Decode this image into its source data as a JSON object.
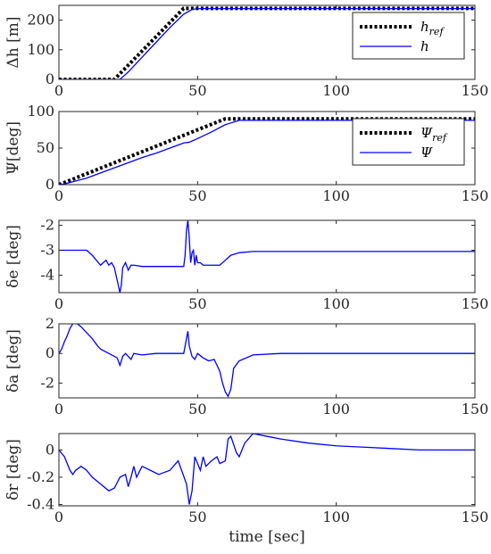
{
  "chart_data": [
    {
      "type": "line",
      "ylabel": "Δh [m]",
      "xlim": [
        0,
        150
      ],
      "ylim": [
        0,
        250
      ],
      "xticks": [
        0,
        50,
        100,
        150
      ],
      "yticks": [
        0,
        100,
        200
      ],
      "legend": "top-right",
      "series": [
        {
          "name": "h_ref",
          "color": "#000000",
          "dashed": true,
          "x": [
            0,
            20,
            45,
            150
          ],
          "y": [
            0,
            0,
            240,
            240
          ]
        },
        {
          "name": "h",
          "color": "#0000ff",
          "dashed": false,
          "x": [
            0,
            22,
            25,
            30,
            35,
            40,
            45,
            48,
            50,
            150
          ],
          "y": [
            0,
            0,
            25,
            75,
            125,
            175,
            220,
            236,
            239,
            239
          ]
        }
      ]
    },
    {
      "type": "line",
      "ylabel": "Ψ[deg]",
      "xlim": [
        0,
        150
      ],
      "ylim": [
        0,
        100
      ],
      "xticks": [
        0,
        50,
        100,
        150
      ],
      "yticks": [
        0,
        50,
        100
      ],
      "legend": "top-right",
      "series": [
        {
          "name": "Ψ_ref",
          "color": "#000000",
          "dashed": true,
          "x": [
            0,
            60,
            150
          ],
          "y": [
            0,
            90,
            90
          ]
        },
        {
          "name": "Ψ",
          "color": "#0000ff",
          "dashed": false,
          "x": [
            0,
            2,
            5,
            10,
            15,
            20,
            25,
            30,
            35,
            40,
            45,
            47,
            50,
            55,
            60,
            65,
            150
          ],
          "y": [
            0,
            1,
            4,
            9,
            16,
            23,
            30,
            37,
            43,
            50,
            57,
            58,
            63,
            72,
            82,
            88,
            88
          ]
        }
      ]
    },
    {
      "type": "line",
      "ylabel": "δe [deg]",
      "xlim": [
        0,
        150
      ],
      "ylim": [
        -4.7,
        -1.8
      ],
      "xticks": [
        0,
        50,
        100,
        150
      ],
      "yticks": [
        -2,
        -3,
        -4
      ],
      "series": [
        {
          "name": "",
          "color": "#0000ff",
          "dashed": false,
          "x": [
            0,
            5,
            10,
            12,
            15,
            17,
            18,
            19,
            20,
            21,
            22,
            22.5,
            23,
            24,
            25,
            26,
            27,
            30,
            40,
            45,
            45.5,
            46,
            46.5,
            47,
            47.5,
            48,
            48.5,
            49,
            49.5,
            50,
            51,
            52,
            55,
            58,
            60,
            62,
            65,
            70,
            150
          ],
          "y": [
            -3.0,
            -3.0,
            -3.0,
            -3.2,
            -3.6,
            -3.4,
            -3.6,
            -3.5,
            -3.7,
            -4.2,
            -4.7,
            -4.4,
            -3.7,
            -3.5,
            -3.8,
            -3.6,
            -3.6,
            -3.65,
            -3.65,
            -3.65,
            -3.2,
            -2.2,
            -1.8,
            -2.5,
            -3.5,
            -3.1,
            -3.0,
            -3.6,
            -3.2,
            -3.5,
            -3.5,
            -3.6,
            -3.6,
            -3.6,
            -3.4,
            -3.2,
            -3.1,
            -3.05,
            -3.05
          ]
        }
      ]
    },
    {
      "type": "line",
      "ylabel": "δa [deg]",
      "xlim": [
        0,
        150
      ],
      "ylim": [
        -3,
        2
      ],
      "xticks": [
        0,
        50,
        100,
        150
      ],
      "yticks": [
        2,
        0,
        -2
      ],
      "series": [
        {
          "name": "",
          "color": "#0000ff",
          "dashed": false,
          "x": [
            0,
            1,
            2,
            3,
            4,
            5,
            6,
            8,
            10,
            12,
            14,
            15,
            17,
            19,
            21,
            22,
            23,
            24,
            26,
            27,
            30,
            35,
            40,
            45,
            46,
            46.5,
            47,
            48,
            49,
            50,
            52,
            54,
            56,
            58,
            59,
            60,
            61,
            62,
            63,
            65,
            70,
            80,
            150
          ],
          "y": [
            0,
            0.3,
            0.8,
            1.2,
            1.7,
            2.0,
            2.1,
            1.8,
            1.4,
            1.0,
            0.5,
            0.3,
            0.1,
            -0.1,
            -0.3,
            -0.8,
            -0.2,
            0,
            -0.4,
            0,
            -0.1,
            0,
            0,
            0.0,
            1.0,
            1.5,
            0.5,
            -0.2,
            -0.4,
            0,
            -0.3,
            -0.5,
            -0.4,
            -1.2,
            -2.0,
            -2.6,
            -2.9,
            -2.4,
            -1.0,
            -0.5,
            -0.1,
            0,
            0
          ]
        }
      ]
    },
    {
      "type": "line",
      "ylabel": "δr [deg]",
      "xlim": [
        0,
        150
      ],
      "ylim": [
        -0.41,
        0.12
      ],
      "xticks": [
        0,
        50,
        100,
        150
      ],
      "yticks": [
        0,
        -0.2,
        -0.4
      ],
      "xlabel": "time [sec]",
      "series": [
        {
          "name": "",
          "color": "#0000ff",
          "dashed": false,
          "x": [
            0,
            2,
            4,
            5,
            6,
            8,
            10,
            12,
            15,
            18,
            20,
            22,
            24,
            25,
            26,
            27,
            28,
            30,
            33,
            36,
            40,
            43,
            46,
            47,
            48,
            49,
            50,
            51,
            52,
            53,
            55,
            57,
            58,
            60,
            61,
            62,
            64,
            65,
            67,
            70,
            75,
            80,
            90,
            100,
            110,
            120,
            130,
            150
          ],
          "y": [
            0,
            -0.05,
            -0.15,
            -0.18,
            -0.15,
            -0.12,
            -0.15,
            -0.2,
            -0.25,
            -0.3,
            -0.28,
            -0.2,
            -0.18,
            -0.27,
            -0.2,
            -0.12,
            -0.2,
            -0.12,
            -0.15,
            -0.18,
            -0.15,
            -0.08,
            -0.25,
            -0.4,
            -0.3,
            -0.05,
            -0.1,
            -0.15,
            -0.05,
            -0.12,
            -0.08,
            -0.05,
            -0.1,
            -0.08,
            0.08,
            0.1,
            -0.02,
            -0.05,
            0.05,
            0.12,
            0.1,
            0.08,
            0.05,
            0.03,
            0.02,
            0.01,
            0.0,
            0.0
          ]
        }
      ]
    }
  ]
}
